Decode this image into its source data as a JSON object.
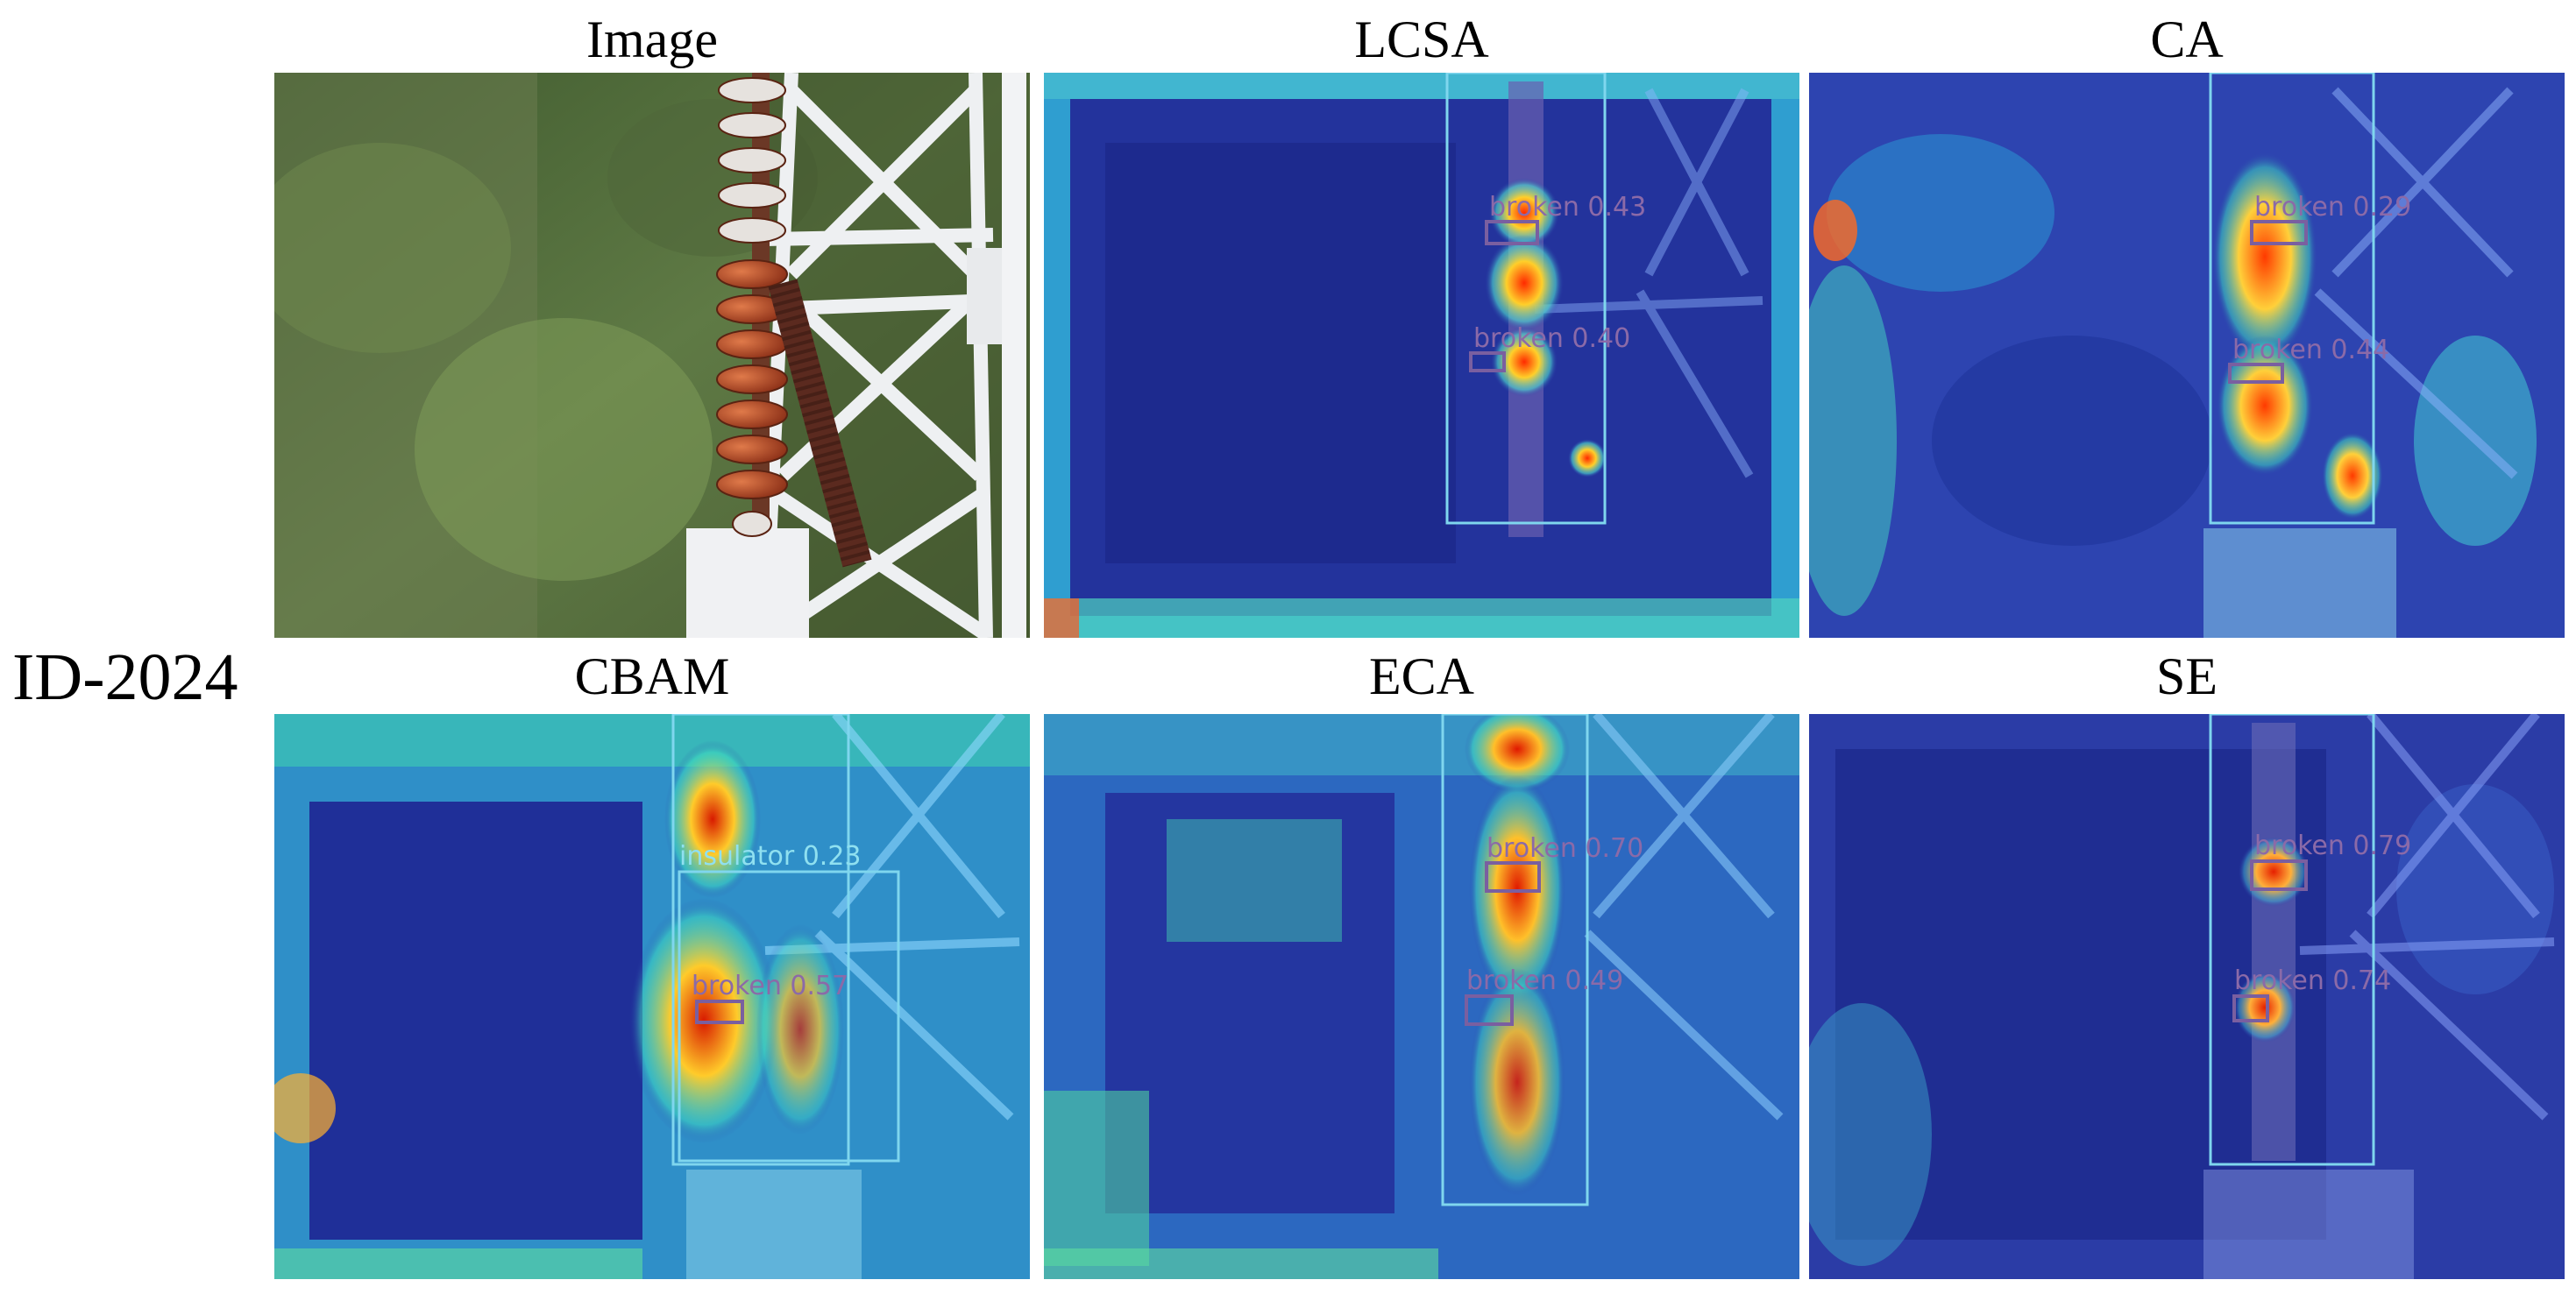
{
  "row_label": "ID-2024",
  "colors": {
    "detection_box": "#7a5fa0",
    "insulator_box": "#7fd6ee",
    "label_text": "#8b6aa8",
    "insulator_label_text": "#8fe0f0"
  },
  "panels": [
    {
      "id": "image",
      "title": "Image",
      "kind": "photo",
      "detections": []
    },
    {
      "id": "lcsa",
      "title": "LCSA",
      "kind": "heatmap",
      "detections": [
        {
          "class": "broken",
          "label": "broken 0.43"
        },
        {
          "class": "broken",
          "label": "broken 0.40"
        }
      ]
    },
    {
      "id": "ca",
      "title": "CA",
      "kind": "heatmap",
      "detections": [
        {
          "class": "broken",
          "label": "broken 0.29"
        },
        {
          "class": "broken",
          "label": "broken 0.44"
        }
      ]
    },
    {
      "id": "cbam",
      "title": "CBAM",
      "kind": "heatmap",
      "detections": [
        {
          "class": "insulator",
          "label": "insulator 0.23"
        },
        {
          "class": "broken",
          "label": "broken 0.57"
        }
      ]
    },
    {
      "id": "eca",
      "title": "ECA",
      "kind": "heatmap",
      "detections": [
        {
          "class": "broken",
          "label": "broken 0.70"
        },
        {
          "class": "broken",
          "label": "broken 0.49"
        }
      ]
    },
    {
      "id": "se",
      "title": "SE",
      "kind": "heatmap",
      "detections": [
        {
          "class": "broken",
          "label": "broken 0.79"
        },
        {
          "class": "broken",
          "label": "broken 0.74"
        }
      ]
    }
  ]
}
